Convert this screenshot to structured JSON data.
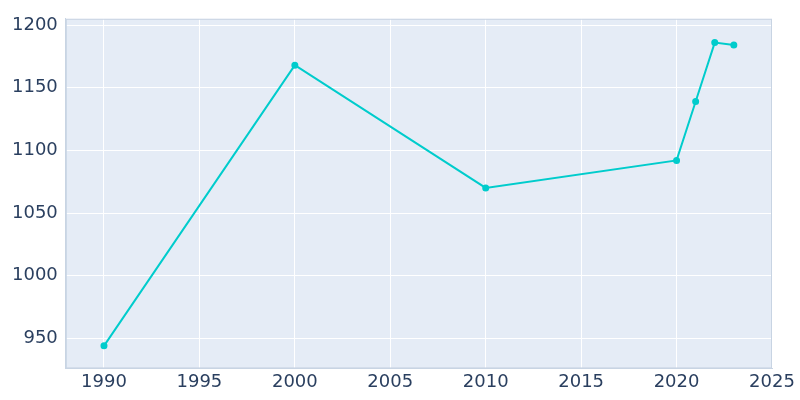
{
  "chart_data": {
    "type": "line",
    "x": [
      1990,
      2000,
      2010,
      2020,
      2021,
      2022,
      2023
    ],
    "values": [
      944,
      1168,
      1070,
      1092,
      1139,
      1186,
      1184
    ],
    "color": "#00cccc",
    "marker": "circle",
    "xlim": [
      1988,
      2025
    ],
    "xticks": [
      1990,
      1995,
      2000,
      2005,
      2010,
      2015,
      2020,
      2025
    ],
    "ylim": [
      926,
      1205
    ],
    "yticks": [
      950,
      1000,
      1050,
      1100,
      1150,
      1200
    ],
    "grid": true
  }
}
